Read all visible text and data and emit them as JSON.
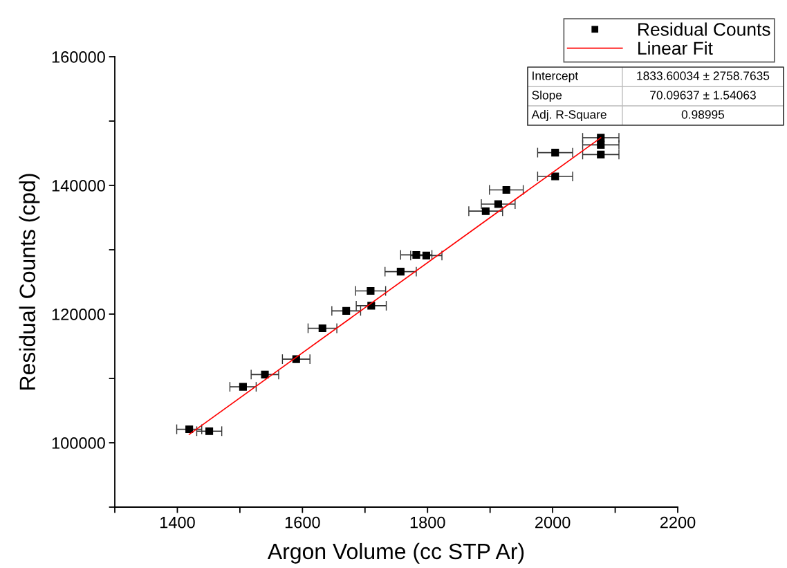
{
  "chart_data": {
    "type": "scatter",
    "xlabel": "Argon Volume (cc STP Ar)",
    "ylabel": "Residual Counts (cpd)",
    "xlim": [
      1300,
      2200
    ],
    "ylim": [
      90000,
      160000
    ],
    "xticks": [
      {
        "value": 1300,
        "label": null
      },
      1400,
      {
        "value": 1500,
        "label": null
      },
      1600,
      {
        "value": 1700,
        "label": null
      },
      1800,
      {
        "value": 1900,
        "label": null
      },
      2000,
      {
        "value": 2100,
        "label": null
      },
      2200
    ],
    "yticks": [
      {
        "value": 90000,
        "label": null
      },
      100000,
      {
        "value": 110000,
        "label": null
      },
      120000,
      {
        "value": 130000,
        "label": null
      },
      140000,
      {
        "value": 150000,
        "label": null
      },
      160000
    ],
    "legend": "top right",
    "grid": false,
    "series": [
      {
        "name": "Residual Counts",
        "marker": "square",
        "color": "#000000",
        "x": [
          1419,
          1451,
          1505,
          1540,
          1590,
          1632,
          1670,
          1710,
          1709,
          1757,
          1782,
          1798,
          1893,
          1913,
          1926,
          2004,
          2004,
          2077,
          2077,
          2077
        ],
        "values": [
          102100,
          101800,
          108700,
          110600,
          113000,
          117800,
          120500,
          121300,
          123600,
          126600,
          129200,
          129100,
          136000,
          137100,
          139300,
          141400,
          145100,
          147400,
          146300,
          144800
        ],
        "xerrors": [
          20,
          20,
          21,
          22,
          22,
          23,
          23,
          24,
          24,
          25,
          25,
          25,
          27,
          27,
          27,
          28,
          28,
          29,
          29,
          29
        ]
      },
      {
        "name": "Linear Fit",
        "type": "line",
        "marker": "none",
        "line_style": "solid",
        "color": "#ff0000",
        "x": [
          1419,
          2077
        ],
        "values": [
          101300,
          147400
        ]
      }
    ],
    "annotations": [
      "Intercept",
      "1833.60034 ± 2758.7635",
      "Slope",
      "70.09637 ± 1.54063",
      "Adj. R-Square",
      "0.98995"
    ]
  }
}
